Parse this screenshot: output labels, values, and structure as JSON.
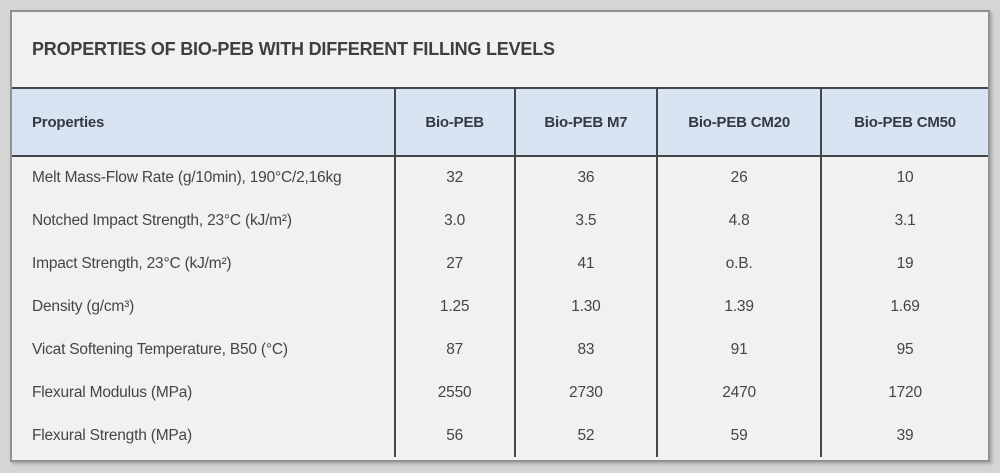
{
  "header": {
    "title": "PROPERTIES OF BIO-PEB WITH DIFFERENT FILLING LEVELS"
  },
  "table": {
    "columns": [
      "Properties",
      "Bio-PEB",
      "Bio-PEB M7",
      "Bio-PEB CM20",
      "Bio-PEB CM50"
    ],
    "rows": [
      {
        "property": "Melt Mass-Flow Rate (g/10min), 190°C/2,16kg",
        "values": [
          "32",
          "36",
          "26",
          "10"
        ]
      },
      {
        "property": "Notched Impact Strength, 23°C (kJ/m²)",
        "values": [
          "3.0",
          "3.5",
          "4.8",
          "3.1"
        ]
      },
      {
        "property": "Impact Strength, 23°C (kJ/m²)",
        "values": [
          "27",
          "41",
          "o.B.",
          "19"
        ]
      },
      {
        "property": "Density (g/cm³)",
        "values": [
          "1.25",
          "1.30",
          "1.39",
          "1.69"
        ]
      },
      {
        "property": "Vicat Softening Temperature, B50 (°C)",
        "values": [
          "87",
          "83",
          "91",
          "95"
        ]
      },
      {
        "property": "Flexural Modulus (MPa)",
        "values": [
          "2550",
          "2730",
          "2470",
          "1720"
        ]
      },
      {
        "property": "Flexural Strength (MPa)",
        "values": [
          "56",
          "52",
          "59",
          "39"
        ]
      }
    ]
  },
  "colors": {
    "page_background": "#d5d5d3",
    "card_background": "#f1f1ef",
    "card_border": "#8f9296",
    "header_row_background": "#d9e4f2",
    "table_border_dark": "#43474c",
    "title_text": "#3c4043",
    "body_text": "#454545"
  },
  "chart_data": {
    "type": "table",
    "title": "PROPERTIES OF BIO-PEB WITH DIFFERENT FILLING LEVELS",
    "columns": [
      "Properties",
      "Bio-PEB",
      "Bio-PEB M7",
      "Bio-PEB CM20",
      "Bio-PEB CM50"
    ],
    "rows": [
      [
        "Melt Mass-Flow Rate (g/10min), 190°C/2,16kg",
        "32",
        "36",
        "26",
        "10"
      ],
      [
        "Notched Impact Strength, 23°C (kJ/m²)",
        "3.0",
        "3.5",
        "4.8",
        "3.1"
      ],
      [
        "Impact Strength, 23°C (kJ/m²)",
        "27",
        "41",
        "o.B.",
        "19"
      ],
      [
        "Density (g/cm³)",
        "1.25",
        "1.30",
        "1.39",
        "1.69"
      ],
      [
        "Vicat Softening Temperature, B50 (°C)",
        "87",
        "83",
        "91",
        "95"
      ],
      [
        "Flexural Modulus (MPa)",
        "2550",
        "2730",
        "2470",
        "1720"
      ],
      [
        "Flexural Strength (MPa)",
        "56",
        "52",
        "59",
        "39"
      ]
    ],
    "layout_hints": {
      "header_fill": "#d9e4f2",
      "column_separators": true,
      "row_separators": false,
      "first_column_align": "left",
      "value_align": "center"
    }
  }
}
